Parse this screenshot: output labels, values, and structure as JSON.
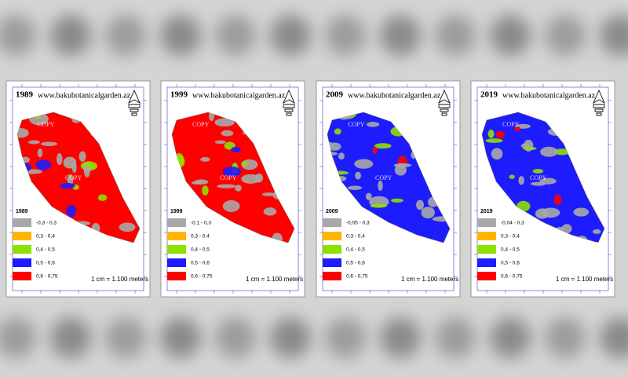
{
  "panels": [
    {
      "year": "1989",
      "website": "www.bakubotanicalgarden.az",
      "watermarks": [
        "COPY",
        "COPY"
      ],
      "legend": {
        "title": "1989",
        "items": [
          {
            "label": "-0,3 - 0,3",
            "color": "#a8a8a8"
          },
          {
            "label": "0,3 - 0,4",
            "color": "#ffb400"
          },
          {
            "label": "0,4 - 0,5",
            "color": "#8ee000"
          },
          {
            "label": "0,5 - 0,6",
            "color": "#1c1cff"
          },
          {
            "label": "0,6 - 0,75",
            "color": "#ff0000"
          }
        ]
      },
      "scale": "1 cm = 1.100 meters"
    },
    {
      "year": "1999",
      "website": "www.bakubotanicalgarden.az",
      "watermarks": [
        "COPY",
        "COPY"
      ],
      "legend": {
        "title": "1999",
        "items": [
          {
            "label": "-0,1 - 0,3",
            "color": "#a8a8a8"
          },
          {
            "label": "0,3 - 0,4",
            "color": "#ffb400"
          },
          {
            "label": "0,4 - 0,5",
            "color": "#8ee000"
          },
          {
            "label": "0,5 - 0,6",
            "color": "#1c1cff"
          },
          {
            "label": "0,6 - 0,75",
            "color": "#ff0000"
          }
        ]
      },
      "scale": "1 cm = 1.100 meters"
    },
    {
      "year": "2009",
      "website": "www.bakubotanicalgarden.az",
      "watermarks": [
        "COPY",
        "COPY"
      ],
      "legend": {
        "title": "2009",
        "items": [
          {
            "label": "-0,05 - 0,3",
            "color": "#a8a8a8"
          },
          {
            "label": "0,3 - 0,4",
            "color": "#ffb400"
          },
          {
            "label": "0,4 - 0,5",
            "color": "#8ee000"
          },
          {
            "label": "0,5 - 0,6",
            "color": "#1c1cff"
          },
          {
            "label": "0,6 - 0,75",
            "color": "#ff0000"
          }
        ]
      },
      "scale": "1 cm = 1.100 meters"
    },
    {
      "year": "2019",
      "website": "www.bakubotanicalgarden.az",
      "watermarks": [
        "COPY",
        "COPY"
      ],
      "legend": {
        "title": "2019",
        "items": [
          {
            "label": "-0,04 - 0,3",
            "color": "#a8a8a8"
          },
          {
            "label": "0,3 - 0,4",
            "color": "#ffb400"
          },
          {
            "label": "0,4 - 0,5",
            "color": "#8ee000"
          },
          {
            "label": "0,5 - 0,6",
            "color": "#1c1cff"
          },
          {
            "label": "0,6 - 0,75",
            "color": "#ff0000"
          }
        ]
      },
      "scale": "1 cm = 1.100 meters"
    }
  ]
}
